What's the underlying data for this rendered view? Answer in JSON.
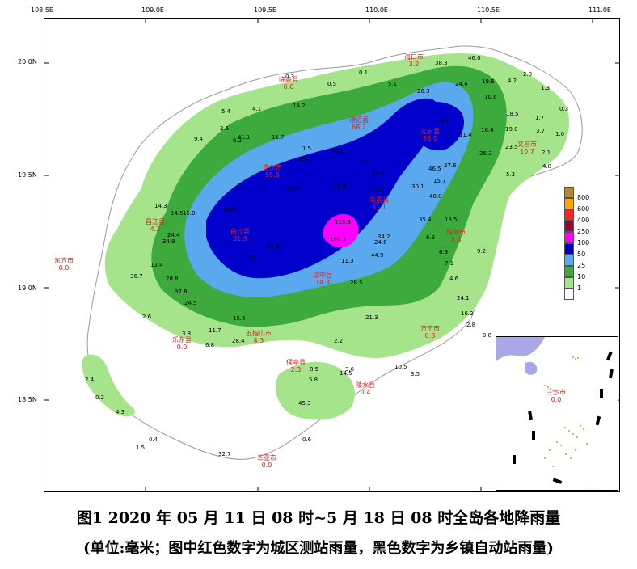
{
  "axes": {
    "longitude_ticks": [
      "108.5E",
      "109.0E",
      "109.5E",
      "110.0E",
      "110.5E",
      "111.0E"
    ],
    "latitude_ticks": [
      "20.0N",
      "19.5N",
      "19.0N",
      "18.5N"
    ]
  },
  "legend": {
    "levels": [
      {
        "label": "800",
        "color": "#b8862e"
      },
      {
        "label": "600",
        "color": "#ffa500"
      },
      {
        "label": "400",
        "color": "#ff2020"
      },
      {
        "label": "250",
        "color": "#8b0a3a"
      },
      {
        "label": "100",
        "color": "#ff00ff"
      },
      {
        "label": "50",
        "color": "#0000cc"
      },
      {
        "label": "25",
        "color": "#5aa8ee"
      },
      {
        "label": "10",
        "color": "#3caa3c"
      },
      {
        "label": "1",
        "color": "#a6e48c"
      },
      {
        "label": "",
        "color": "#ffffff"
      }
    ]
  },
  "city_stations": [
    {
      "name": "海口市",
      "value": "3.2"
    },
    {
      "name": "临高县",
      "value": "0.0"
    },
    {
      "name": "澄迈县",
      "value": "68.2"
    },
    {
      "name": "定安县",
      "value": "56.0"
    },
    {
      "name": "文昌市",
      "value": "10.7"
    },
    {
      "name": "儋州市",
      "value": "55.5"
    },
    {
      "name": "屯昌县",
      "value": "31.1"
    },
    {
      "name": "琼海市",
      "value": "3.6"
    },
    {
      "name": "白沙县",
      "value": "31.9"
    },
    {
      "name": "昌江县",
      "value": "4.2"
    },
    {
      "name": "琼中县",
      "value": "14.3"
    },
    {
      "name": "东方市",
      "value": "0.0"
    },
    {
      "name": "万宁市",
      "value": "0.8"
    },
    {
      "name": "五指山市",
      "value": "4.3"
    },
    {
      "name": "乐东县",
      "value": "0.0"
    },
    {
      "name": "保亭县",
      "value": "2.3"
    },
    {
      "name": "陵水县",
      "value": "0.4"
    },
    {
      "name": "三亚市",
      "value": "0.0"
    },
    {
      "name": "三沙市",
      "value": "0.0"
    }
  ],
  "town_values": [
    "0.1",
    "0.3",
    "0.5",
    "1.5",
    "4.1",
    "5.4",
    "2.5",
    "9.4",
    "6.2",
    "14.2",
    "11.7",
    "41.1",
    "4.9",
    "20.5",
    "22.8",
    "32.6",
    "14.5",
    "15.0",
    "14.3",
    "24.4",
    "34.9",
    "36.7",
    "13.4",
    "28.8",
    "37.8",
    "24.5",
    "2.6",
    "3.8",
    "11.7",
    "15.5",
    "28.4",
    "6.8",
    "2.4",
    "0.2",
    "4.3",
    "1.5",
    "0.4",
    "32.7",
    "0.6",
    "29.0",
    "11.6",
    "49.1",
    "35.5",
    "22.2",
    "17.9",
    "19.9",
    "113.3",
    "167.3",
    "34.2",
    "24.6",
    "44.9",
    "11.3",
    "28.5",
    "21.3",
    "8.5",
    "3.6",
    "2.2",
    "14.5",
    "10.5",
    "3.5",
    "46.5",
    "30.1",
    "48.0",
    "15.7",
    "27.6",
    "18.5",
    "35.4",
    "6.3",
    "7.1",
    "6.9",
    "4.6",
    "24.1",
    "16.2",
    "2.8",
    "5.1",
    "9.2",
    "5.3",
    "25.2",
    "16.4",
    "11.4",
    "34.6",
    "26.3",
    "38.3",
    "46.0",
    "24.4",
    "19.6",
    "10.6",
    "18.5",
    "19.0",
    "23.5",
    "4.2",
    "2.8",
    "1.3",
    "1.7",
    "3.7",
    "1.0",
    "0.3",
    "4.8",
    "2.1",
    "45.3",
    "5.8",
    "0.8"
  ],
  "caption": {
    "title": "图1   2020 年 05 月 11 日 08 时~5 月 18 日 08 时全岛各地降雨量",
    "note": "(单位:毫米；图中红色数字为城区测站雨量，黑色数字为乡镇自动站雨量)"
  }
}
